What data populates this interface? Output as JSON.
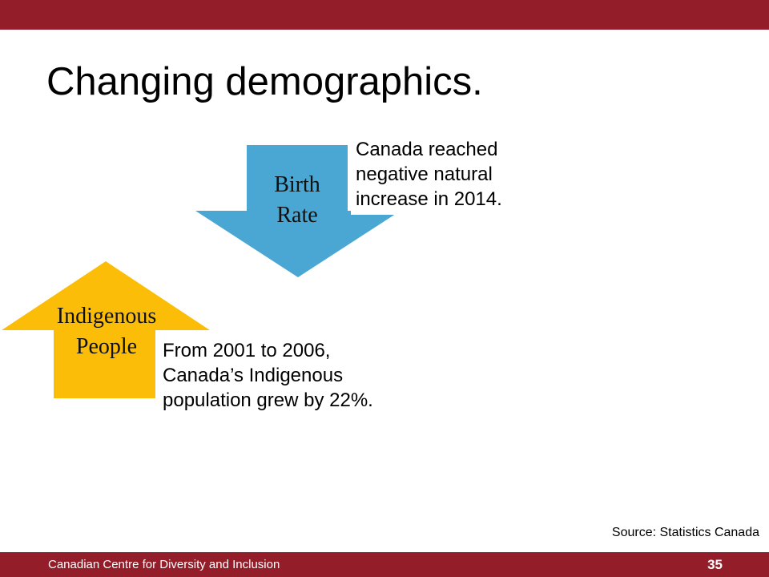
{
  "slide": {
    "title": "Changing demographics.",
    "birth_rate": {
      "label_line1": "Birth",
      "label_line2": "Rate",
      "direction": "down",
      "color": "#4aa7d4",
      "callout": [
        "Canada reached",
        "negative natural",
        "increase in 2014."
      ]
    },
    "indigenous": {
      "label_line1": "Indigenous",
      "label_line2": "People",
      "direction": "up",
      "color": "#fcbd09",
      "callout": [
        "From 2001 to 2006,",
        "Canada’s Indigenous",
        "population grew by 22%."
      ]
    },
    "source": "Source: Statistics Canada"
  },
  "footer": {
    "organization": "Canadian Centre for Diversity and Inclusion",
    "page_number": "35"
  },
  "colors": {
    "brand_bar": "#931e2a"
  }
}
